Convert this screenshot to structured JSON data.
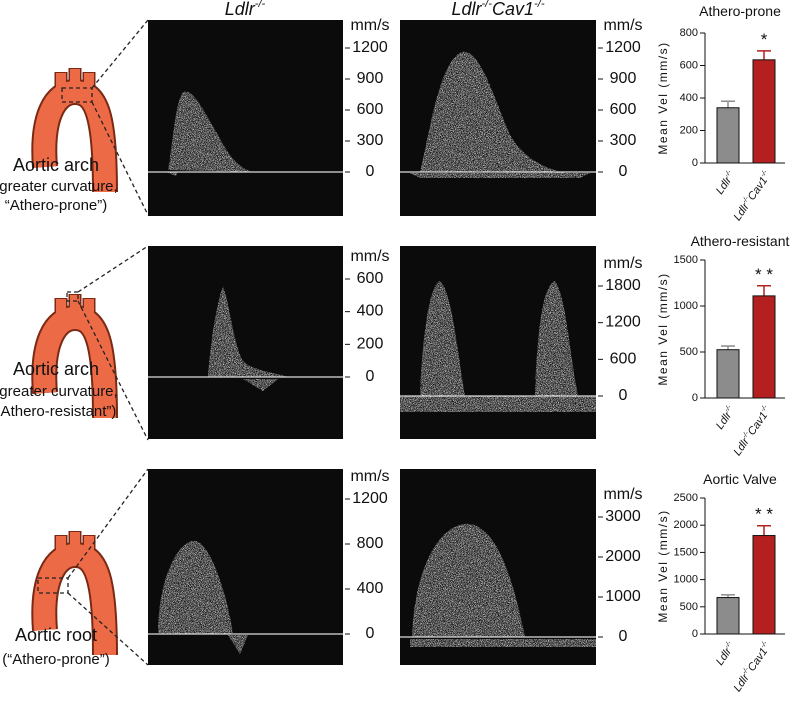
{
  "columns": [
    "Ldlr-/-",
    "Ldlr-/-Cav1-/-"
  ],
  "rows": [
    {
      "lines": [
        "Aortic arch",
        "(greater curvature,",
        "“Athero-prone”)"
      ]
    },
    {
      "lines": [
        "Aortic arch",
        "(greater curvature,",
        "“Athero-resistant”)"
      ]
    },
    {
      "lines": [
        "Aortic root",
        "(“Athero-prone”)"
      ]
    }
  ],
  "doppler": [
    {
      "unit": "mm/s",
      "yticks": [
        0,
        300,
        600,
        900,
        1200
      ]
    },
    {
      "unit": "mm/s",
      "yticks": [
        0,
        300,
        600,
        900,
        1200
      ]
    },
    {
      "unit": "mm/s",
      "yticks": [
        0,
        200,
        400,
        600
      ]
    },
    {
      "unit": "mm/s",
      "yticks": [
        0,
        600,
        1200,
        1800
      ]
    },
    {
      "unit": "mm/s",
      "yticks": [
        0,
        400,
        800,
        1200
      ]
    },
    {
      "unit": "mm/s",
      "yticks": [
        0,
        1000,
        2000,
        3000
      ]
    }
  ],
  "chart_data": [
    {
      "type": "bar",
      "title": "Athero-prone",
      "y_label": "Mean Vel (mm/s)",
      "categories": [
        "Ldlr-/-",
        "Ldlr-/-Cav1-/-"
      ],
      "values": [
        340,
        635
      ],
      "errors": [
        40,
        55
      ],
      "colors": [
        "#8c8c8c",
        "#b3201f"
      ],
      "ylim": [
        0,
        800
      ],
      "yticks": [
        0,
        200,
        400,
        600,
        800
      ],
      "significance": "*"
    },
    {
      "type": "bar",
      "title": "Athero-resistant",
      "y_label": "Mean Vel (mm/s)",
      "categories": [
        "Ldlr-/-",
        "Ldlr-/-Cav1-/-"
      ],
      "values": [
        525,
        1110
      ],
      "errors": [
        40,
        110
      ],
      "colors": [
        "#8c8c8c",
        "#b3201f"
      ],
      "ylim": [
        0,
        1500
      ],
      "yticks": [
        0,
        500,
        1000,
        1500
      ],
      "significance": "* *"
    },
    {
      "type": "bar",
      "title": "Aortic Valve",
      "y_label": "Mean Vel (mm/s)",
      "categories": [
        "Ldlr-/-",
        "Ldlr-/-Cav1-/-"
      ],
      "values": [
        670,
        1810
      ],
      "errors": [
        50,
        180
      ],
      "colors": [
        "#8c8c8c",
        "#b3201f"
      ],
      "ylim": [
        0,
        2500
      ],
      "yticks": [
        0,
        500,
        1000,
        1500,
        2000,
        2500
      ],
      "significance": "* *"
    }
  ]
}
